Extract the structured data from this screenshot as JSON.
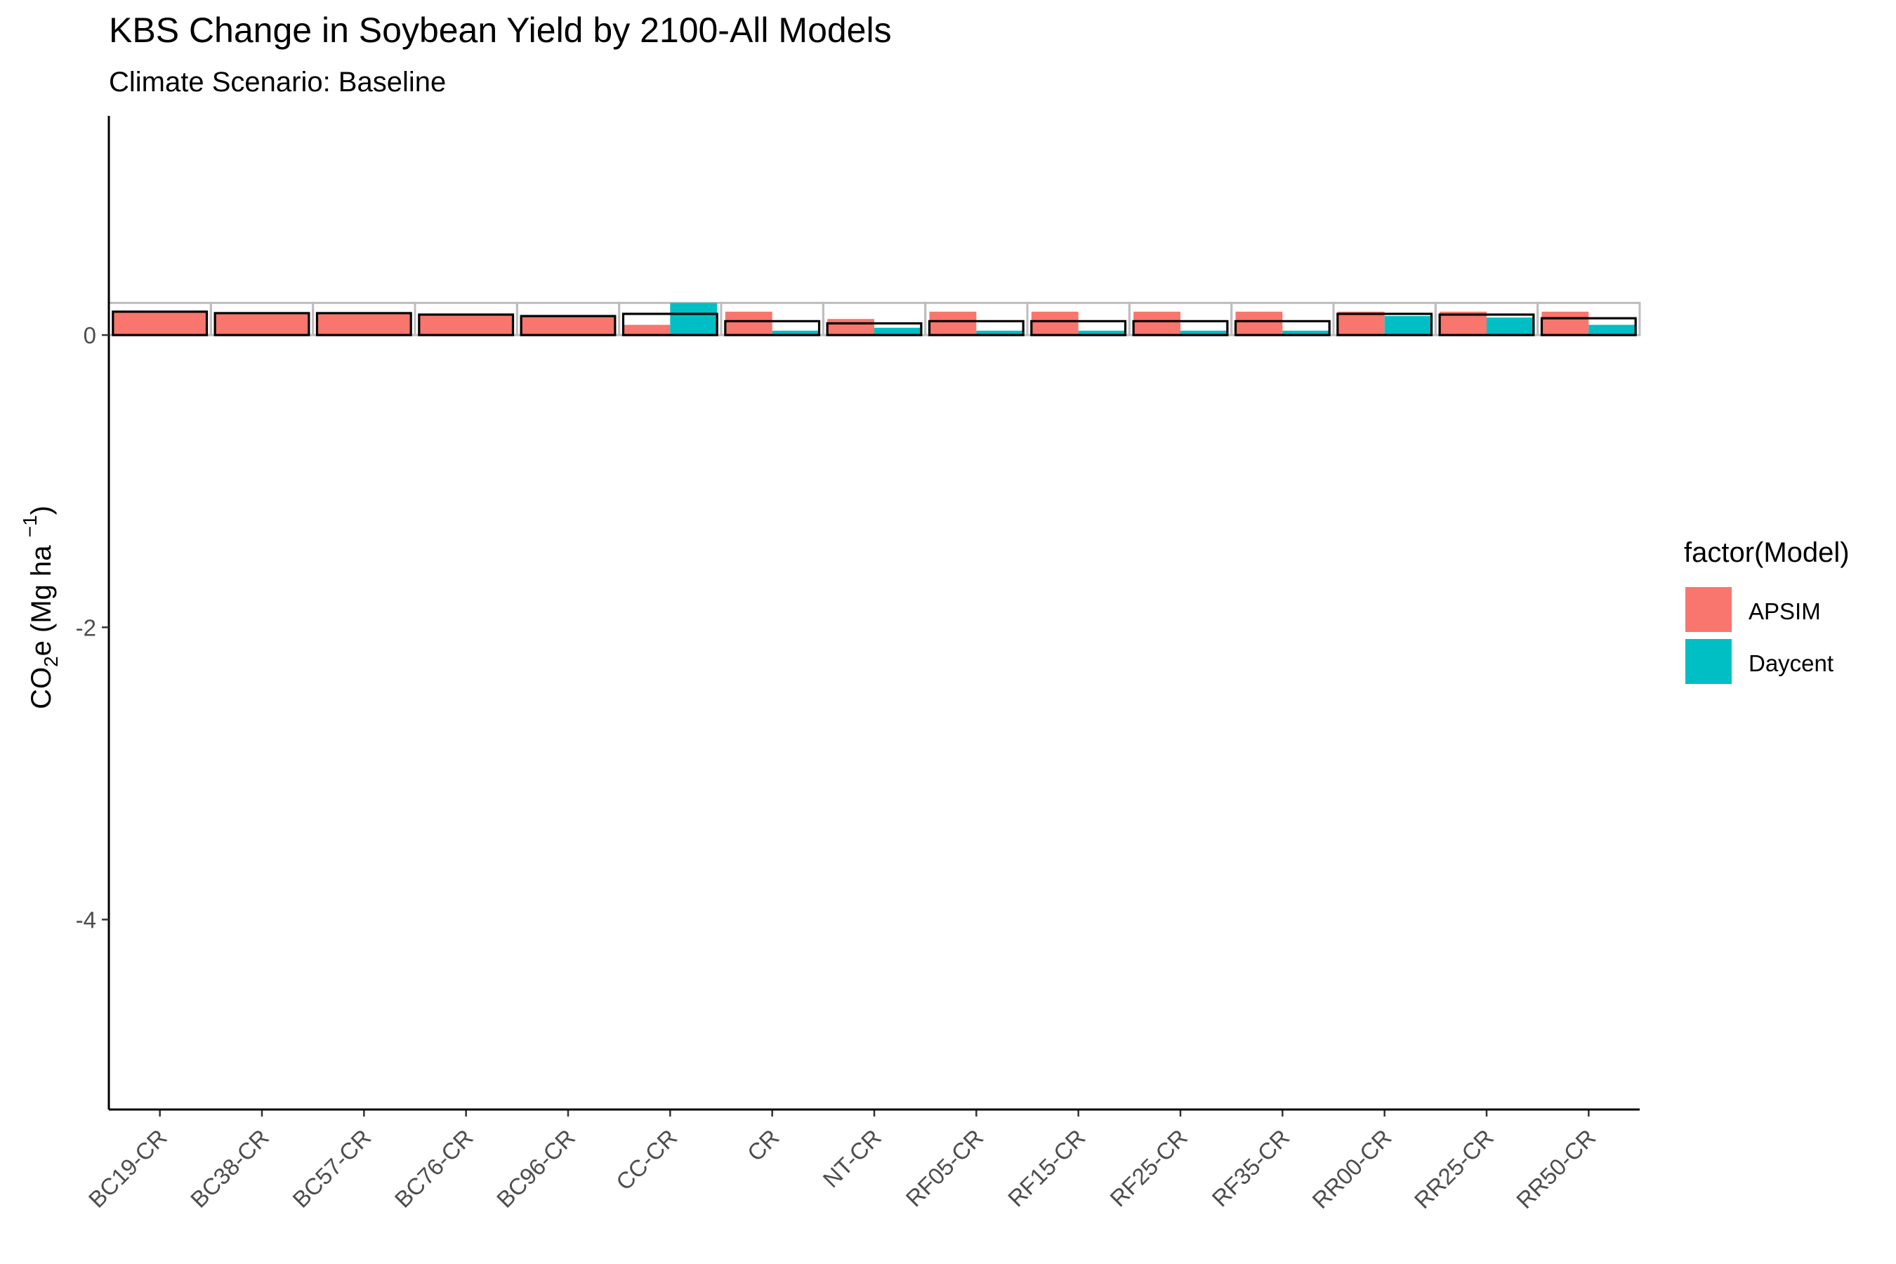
{
  "chart_data": {
    "type": "bar",
    "title": "KBS Change in Soybean Yield by 2100-All Models",
    "subtitle": "Climate Scenario: Baseline",
    "ylabel": "CO2e (Mg ha −1)",
    "ylabel_parts": {
      "base": "CO",
      "sub": "2",
      "mid": "e (Mg ha ",
      "sup": "−1",
      "end": ")"
    },
    "xlabel": "",
    "ylim": [
      -5.3,
      1.5
    ],
    "yticks": [
      0,
      -2,
      -4
    ],
    "ytick_labels": [
      "0",
      "-2",
      "-4"
    ],
    "categories": [
      "BC19-CR",
      "BC38-CR",
      "BC57-CR",
      "BC76-CR",
      "BC96-CR",
      "CC-CR",
      "CR",
      "NT-CR",
      "RF05-CR",
      "RF15-CR",
      "RF25-CR",
      "RF35-CR",
      "RR00-CR",
      "RR25-CR",
      "RR50-CR"
    ],
    "series": [
      {
        "name": "APSIM",
        "color": "#F8766D",
        "values": [
          0.16,
          0.15,
          0.15,
          0.14,
          0.13,
          0.07,
          0.16,
          0.11,
          0.16,
          0.16,
          0.16,
          0.16,
          0.16,
          0.16,
          0.16
        ]
      },
      {
        "name": "Daycent",
        "color": "#00BFC4",
        "values": [
          null,
          null,
          null,
          null,
          null,
          0.22,
          0.03,
          0.05,
          0.03,
          0.03,
          0.03,
          0.03,
          0.13,
          0.12,
          0.07
        ]
      }
    ],
    "mean_values": [
      0.16,
      0.15,
      0.15,
      0.14,
      0.13,
      0.145,
      0.095,
      0.08,
      0.095,
      0.095,
      0.095,
      0.095,
      0.145,
      0.14,
      0.115
    ],
    "range_box_top": 0.22,
    "legend": {
      "title": "factor(Model)",
      "placement": "right"
    },
    "grid": false
  }
}
